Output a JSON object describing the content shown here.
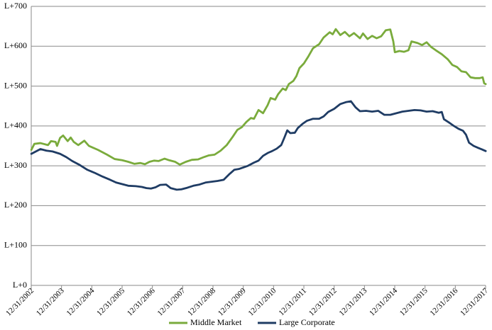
{
  "chart_data": {
    "type": "line",
    "title": "",
    "xlabel": "",
    "ylabel": "",
    "ylim": [
      0,
      700
    ],
    "y_ticks": [
      0,
      100,
      200,
      300,
      400,
      500,
      600,
      700
    ],
    "y_tick_labels": [
      "L+0",
      "L+100",
      "L+200",
      "L+300",
      "L+400",
      "L+500",
      "L+600",
      "L+700"
    ],
    "x_range": [
      2002.997,
      2017.997
    ],
    "x_ticks": [
      2002.997,
      2003.997,
      2004.997,
      2005.997,
      2006.997,
      2007.997,
      2008.997,
      2009.997,
      2010.997,
      2011.997,
      2012.997,
      2013.997,
      2014.997,
      2015.997,
      2016.997,
      2017.997
    ],
    "x_tick_labels": [
      "12/31/2002",
      "12/31/2003",
      "12/31/2004",
      "12/31/2005",
      "12/31/2006",
      "12/31/2007",
      "12/31/2008",
      "12/31/2009",
      "12/31/2010",
      "12/31/2011",
      "12/31/2012",
      "12/31/2013",
      "12/31/2014",
      "12/31/2015",
      "12/31/2016",
      "12/31/2017"
    ],
    "grid": "horizontal",
    "legend_position": "bottom",
    "series": [
      {
        "name": "Middle Market",
        "color": "#7aab3c",
        "points": [
          [
            2003.0,
            340
          ],
          [
            2003.1,
            355
          ],
          [
            2003.3,
            357
          ],
          [
            2003.55,
            352
          ],
          [
            2003.65,
            362
          ],
          [
            2003.8,
            360
          ],
          [
            2003.85,
            350
          ],
          [
            2003.95,
            370
          ],
          [
            2004.05,
            376
          ],
          [
            2004.2,
            362
          ],
          [
            2004.3,
            371
          ],
          [
            2004.4,
            360
          ],
          [
            2004.55,
            352
          ],
          [
            2004.75,
            363
          ],
          [
            2004.9,
            350
          ],
          [
            2005.2,
            340
          ],
          [
            2005.5,
            328
          ],
          [
            2005.75,
            317
          ],
          [
            2006.0,
            314
          ],
          [
            2006.2,
            310
          ],
          [
            2006.4,
            305
          ],
          [
            2006.6,
            307
          ],
          [
            2006.75,
            304
          ],
          [
            2006.9,
            310
          ],
          [
            2007.05,
            313
          ],
          [
            2007.2,
            312
          ],
          [
            2007.4,
            318
          ],
          [
            2007.55,
            314
          ],
          [
            2007.75,
            310
          ],
          [
            2007.9,
            303
          ],
          [
            2008.1,
            310
          ],
          [
            2008.3,
            315
          ],
          [
            2008.5,
            316
          ],
          [
            2008.7,
            322
          ],
          [
            2008.85,
            326
          ],
          [
            2009.05,
            328
          ],
          [
            2009.25,
            338
          ],
          [
            2009.45,
            352
          ],
          [
            2009.65,
            373
          ],
          [
            2009.8,
            390
          ],
          [
            2009.95,
            397
          ],
          [
            2010.1,
            410
          ],
          [
            2010.25,
            420
          ],
          [
            2010.35,
            418
          ],
          [
            2010.5,
            440
          ],
          [
            2010.65,
            432
          ],
          [
            2010.8,
            452
          ],
          [
            2010.9,
            470
          ],
          [
            2011.05,
            466
          ],
          [
            2011.15,
            480
          ],
          [
            2011.3,
            494
          ],
          [
            2011.4,
            490
          ],
          [
            2011.5,
            505
          ],
          [
            2011.65,
            513
          ],
          [
            2011.75,
            525
          ],
          [
            2011.85,
            545
          ],
          [
            2012.0,
            557
          ],
          [
            2012.15,
            575
          ],
          [
            2012.3,
            595
          ],
          [
            2012.5,
            605
          ],
          [
            2012.65,
            622
          ],
          [
            2012.85,
            635
          ],
          [
            2012.95,
            630
          ],
          [
            2013.05,
            643
          ],
          [
            2013.2,
            628
          ],
          [
            2013.35,
            636
          ],
          [
            2013.5,
            625
          ],
          [
            2013.65,
            633
          ],
          [
            2013.85,
            620
          ],
          [
            2013.95,
            632
          ],
          [
            2014.1,
            618
          ],
          [
            2014.25,
            626
          ],
          [
            2014.4,
            620
          ],
          [
            2014.55,
            625
          ],
          [
            2014.7,
            640
          ],
          [
            2014.85,
            642
          ],
          [
            2014.95,
            612
          ],
          [
            2015.0,
            585
          ],
          [
            2015.15,
            588
          ],
          [
            2015.3,
            586
          ],
          [
            2015.45,
            590
          ],
          [
            2015.55,
            612
          ],
          [
            2015.75,
            608
          ],
          [
            2015.9,
            603
          ],
          [
            2016.05,
            610
          ],
          [
            2016.2,
            598
          ],
          [
            2016.35,
            590
          ],
          [
            2016.55,
            580
          ],
          [
            2016.75,
            567
          ],
          [
            2016.9,
            553
          ],
          [
            2017.05,
            548
          ],
          [
            2017.2,
            537
          ],
          [
            2017.35,
            535
          ],
          [
            2017.5,
            522
          ],
          [
            2017.65,
            520
          ],
          [
            2017.8,
            520
          ],
          [
            2017.9,
            522
          ],
          [
            2017.95,
            507
          ],
          [
            2018.0,
            505
          ]
        ]
      },
      {
        "name": "Large Corporate",
        "color": "#1f3c64",
        "points": [
          [
            2003.0,
            330
          ],
          [
            2003.15,
            336
          ],
          [
            2003.3,
            342
          ],
          [
            2003.5,
            338
          ],
          [
            2003.7,
            336
          ],
          [
            2003.95,
            330
          ],
          [
            2004.15,
            322
          ],
          [
            2004.35,
            312
          ],
          [
            2004.6,
            302
          ],
          [
            2004.85,
            290
          ],
          [
            2005.1,
            282
          ],
          [
            2005.35,
            273
          ],
          [
            2005.6,
            265
          ],
          [
            2005.8,
            258
          ],
          [
            2006.0,
            254
          ],
          [
            2006.2,
            250
          ],
          [
            2006.45,
            249
          ],
          [
            2006.65,
            247
          ],
          [
            2006.8,
            244
          ],
          [
            2006.95,
            243
          ],
          [
            2007.1,
            246
          ],
          [
            2007.25,
            252
          ],
          [
            2007.45,
            253
          ],
          [
            2007.6,
            244
          ],
          [
            2007.8,
            240
          ],
          [
            2007.95,
            241
          ],
          [
            2008.15,
            245
          ],
          [
            2008.35,
            250
          ],
          [
            2008.55,
            253
          ],
          [
            2008.75,
            258
          ],
          [
            2008.95,
            260
          ],
          [
            2009.15,
            262
          ],
          [
            2009.35,
            265
          ],
          [
            2009.55,
            280
          ],
          [
            2009.7,
            290
          ],
          [
            2009.85,
            292
          ],
          [
            2010.0,
            296
          ],
          [
            2010.15,
            300
          ],
          [
            2010.35,
            308
          ],
          [
            2010.5,
            313
          ],
          [
            2010.65,
            325
          ],
          [
            2010.8,
            332
          ],
          [
            2010.95,
            337
          ],
          [
            2011.1,
            343
          ],
          [
            2011.25,
            352
          ],
          [
            2011.35,
            370
          ],
          [
            2011.45,
            389
          ],
          [
            2011.55,
            382
          ],
          [
            2011.7,
            383
          ],
          [
            2011.8,
            395
          ],
          [
            2011.95,
            405
          ],
          [
            2012.1,
            413
          ],
          [
            2012.3,
            418
          ],
          [
            2012.5,
            418
          ],
          [
            2012.65,
            424
          ],
          [
            2012.8,
            435
          ],
          [
            2013.0,
            443
          ],
          [
            2013.2,
            455
          ],
          [
            2013.4,
            460
          ],
          [
            2013.55,
            462
          ],
          [
            2013.7,
            447
          ],
          [
            2013.85,
            437
          ],
          [
            2014.05,
            438
          ],
          [
            2014.25,
            436
          ],
          [
            2014.45,
            438
          ],
          [
            2014.65,
            428
          ],
          [
            2014.85,
            428
          ],
          [
            2015.05,
            432
          ],
          [
            2015.25,
            436
          ],
          [
            2015.45,
            438
          ],
          [
            2015.65,
            440
          ],
          [
            2015.85,
            439
          ],
          [
            2016.05,
            436
          ],
          [
            2016.25,
            437
          ],
          [
            2016.45,
            433
          ],
          [
            2016.55,
            435
          ],
          [
            2016.62,
            417
          ],
          [
            2016.8,
            408
          ],
          [
            2016.95,
            400
          ],
          [
            2017.1,
            393
          ],
          [
            2017.25,
            388
          ],
          [
            2017.35,
            378
          ],
          [
            2017.45,
            358
          ],
          [
            2017.6,
            350
          ],
          [
            2017.75,
            345
          ],
          [
            2017.88,
            341
          ],
          [
            2018.0,
            337
          ]
        ]
      }
    ]
  }
}
